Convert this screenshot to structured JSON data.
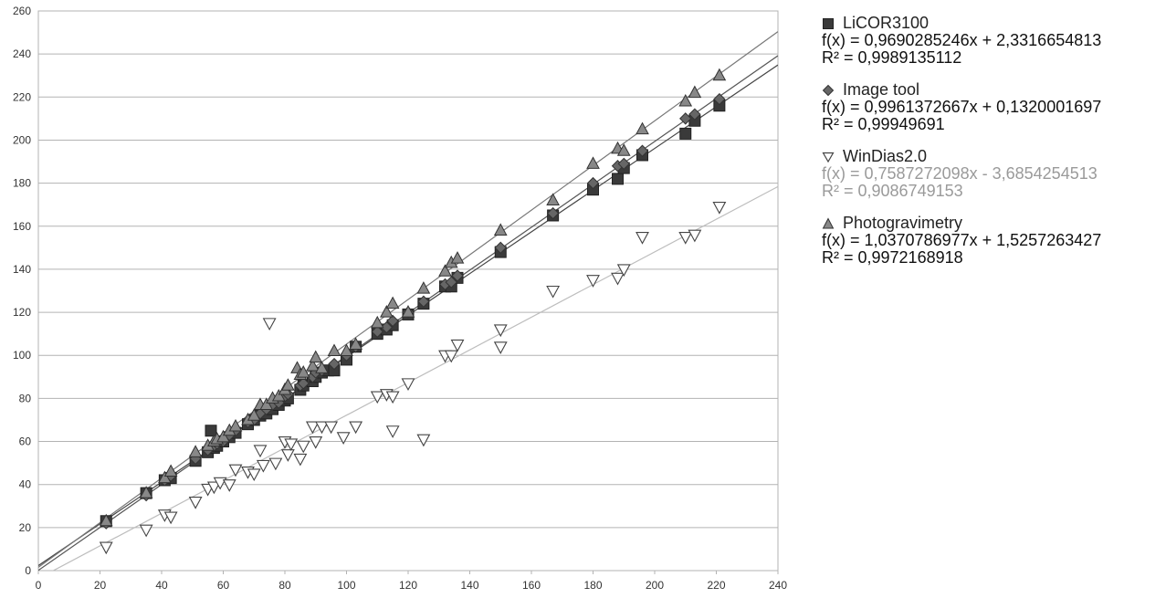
{
  "chart_data": {
    "type": "scatter",
    "xlim": [
      0,
      240
    ],
    "ylim": [
      0,
      260
    ],
    "x_ticks": [
      "0",
      "20",
      "40",
      "60",
      "80",
      "100",
      "120",
      "140",
      "160",
      "180",
      "200",
      "220",
      "240"
    ],
    "y_ticks": [
      "0",
      "20",
      "40",
      "60",
      "80",
      "100",
      "120",
      "140",
      "160",
      "180",
      "200",
      "220",
      "240",
      "260"
    ],
    "grid": "horizontal",
    "legend_position": "right",
    "series": [
      {
        "name": "LiCOR3100",
        "marker": "square",
        "color": "#3a3a3a",
        "equation": "f(x) = 0,9690285246x + 2,3316654813",
        "r2": "R² = 0,9989135112",
        "trend": {
          "slope": 0.9690285246,
          "intercept": 2.3316654813
        },
        "points": [
          [
            22,
            23
          ],
          [
            35,
            36
          ],
          [
            41,
            42
          ],
          [
            43,
            43
          ],
          [
            51,
            51
          ],
          [
            55,
            55
          ],
          [
            56,
            65
          ],
          [
            57,
            57
          ],
          [
            58,
            58
          ],
          [
            60,
            60
          ],
          [
            62,
            62
          ],
          [
            64,
            64
          ],
          [
            68,
            68
          ],
          [
            70,
            70
          ],
          [
            72,
            72
          ],
          [
            74,
            73
          ],
          [
            76,
            75
          ],
          [
            78,
            77
          ],
          [
            80,
            79
          ],
          [
            81,
            80
          ],
          [
            85,
            84
          ],
          [
            86,
            86
          ],
          [
            89,
            88
          ],
          [
            90,
            90
          ],
          [
            92,
            92
          ],
          [
            94,
            93
          ],
          [
            96,
            93
          ],
          [
            100,
            98
          ],
          [
            103,
            104
          ],
          [
            110,
            110
          ],
          [
            113,
            112
          ],
          [
            115,
            114
          ],
          [
            120,
            119
          ],
          [
            125,
            124
          ],
          [
            132,
            132
          ],
          [
            134,
            132
          ],
          [
            136,
            136
          ],
          [
            150,
            148
          ],
          [
            167,
            165
          ],
          [
            180,
            177
          ],
          [
            188,
            182
          ],
          [
            190,
            187
          ],
          [
            196,
            193
          ],
          [
            210,
            203
          ],
          [
            213,
            209
          ],
          [
            221,
            216
          ]
        ]
      },
      {
        "name": "Image tool",
        "marker": "diamond",
        "color": "#666666",
        "equation": "f(x) = 0,9961372667x + 0,1320001697",
        "r2": "R² = 0,99949691",
        "trend": {
          "slope": 0.9961372667,
          "intercept": 0.1320001697
        },
        "points": [
          [
            22,
            22
          ],
          [
            35,
            35
          ],
          [
            41,
            42
          ],
          [
            43,
            44
          ],
          [
            51,
            52
          ],
          [
            55,
            56
          ],
          [
            57,
            58
          ],
          [
            58,
            59
          ],
          [
            60,
            60
          ],
          [
            62,
            63
          ],
          [
            64,
            65
          ],
          [
            68,
            69
          ],
          [
            70,
            70
          ],
          [
            72,
            73
          ],
          [
            74,
            75
          ],
          [
            76,
            77
          ],
          [
            78,
            78
          ],
          [
            80,
            81
          ],
          [
            81,
            82
          ],
          [
            85,
            86
          ],
          [
            86,
            87
          ],
          [
            89,
            90
          ],
          [
            90,
            92
          ],
          [
            92,
            93
          ],
          [
            96,
            96
          ],
          [
            100,
            100
          ],
          [
            103,
            104
          ],
          [
            110,
            111
          ],
          [
            113,
            113
          ],
          [
            115,
            116
          ],
          [
            120,
            120
          ],
          [
            125,
            125
          ],
          [
            132,
            133
          ],
          [
            134,
            134
          ],
          [
            136,
            137
          ],
          [
            150,
            150
          ],
          [
            167,
            166
          ],
          [
            180,
            180
          ],
          [
            188,
            188
          ],
          [
            190,
            189
          ],
          [
            196,
            195
          ],
          [
            210,
            210
          ],
          [
            213,
            212
          ],
          [
            221,
            219
          ]
        ]
      },
      {
        "name": "WinDias2.0",
        "marker": "triangle-down",
        "color": "#ffffff",
        "equation": "f(x) = 0,7587272098x - 3,6854254513",
        "r2": "R² = 0,9086749153",
        "trend": {
          "slope": 0.7587272098,
          "intercept": -3.6854254513
        },
        "points": [
          [
            22,
            11
          ],
          [
            35,
            19
          ],
          [
            41,
            26
          ],
          [
            43,
            25
          ],
          [
            51,
            32
          ],
          [
            55,
            38
          ],
          [
            57,
            39
          ],
          [
            59,
            41
          ],
          [
            62,
            40
          ],
          [
            64,
            47
          ],
          [
            68,
            46
          ],
          [
            70,
            45
          ],
          [
            72,
            56
          ],
          [
            73,
            49
          ],
          [
            75,
            115
          ],
          [
            77,
            50
          ],
          [
            80,
            60
          ],
          [
            81,
            54
          ],
          [
            82,
            59
          ],
          [
            85,
            52
          ],
          [
            86,
            58
          ],
          [
            89,
            67
          ],
          [
            90,
            60
          ],
          [
            92,
            67
          ],
          [
            95,
            67
          ],
          [
            99,
            62
          ],
          [
            103,
            67
          ],
          [
            110,
            81
          ],
          [
            113,
            82
          ],
          [
            115,
            81
          ],
          [
            115,
            65
          ],
          [
            120,
            87
          ],
          [
            125,
            61
          ],
          [
            132,
            100
          ],
          [
            134,
            100
          ],
          [
            136,
            105
          ],
          [
            150,
            104
          ],
          [
            150,
            112
          ],
          [
            167,
            130
          ],
          [
            180,
            135
          ],
          [
            188,
            136
          ],
          [
            190,
            140
          ],
          [
            196,
            155
          ],
          [
            210,
            155
          ],
          [
            213,
            156
          ],
          [
            221,
            169
          ]
        ]
      },
      {
        "name": "Photogravimetry",
        "marker": "triangle-up",
        "color": "#888888",
        "equation": "f(x) = 1,0370786977x + 1,5257263427",
        "r2": "R² = 0,9972168918",
        "trend": {
          "slope": 1.0370786977,
          "intercept": 1.5257263427
        },
        "points": [
          [
            22,
            23
          ],
          [
            35,
            36
          ],
          [
            41,
            43
          ],
          [
            43,
            46
          ],
          [
            51,
            55
          ],
          [
            55,
            58
          ],
          [
            57,
            60
          ],
          [
            58,
            61
          ],
          [
            60,
            62
          ],
          [
            62,
            65
          ],
          [
            64,
            67
          ],
          [
            68,
            70
          ],
          [
            70,
            72
          ],
          [
            72,
            77
          ],
          [
            74,
            77
          ],
          [
            76,
            80
          ],
          [
            78,
            81
          ],
          [
            80,
            84
          ],
          [
            81,
            86
          ],
          [
            84,
            94
          ],
          [
            85,
            91
          ],
          [
            86,
            92
          ],
          [
            89,
            95
          ],
          [
            90,
            99
          ],
          [
            92,
            94
          ],
          [
            96,
            102
          ],
          [
            100,
            102
          ],
          [
            103,
            105
          ],
          [
            110,
            115
          ],
          [
            113,
            120
          ],
          [
            115,
            124
          ],
          [
            120,
            120
          ],
          [
            125,
            131
          ],
          [
            132,
            139
          ],
          [
            134,
            143
          ],
          [
            136,
            145
          ],
          [
            150,
            158
          ],
          [
            167,
            172
          ],
          [
            180,
            189
          ],
          [
            188,
            196
          ],
          [
            190,
            195
          ],
          [
            196,
            205
          ],
          [
            210,
            218
          ],
          [
            213,
            222
          ],
          [
            221,
            230
          ]
        ]
      }
    ]
  }
}
